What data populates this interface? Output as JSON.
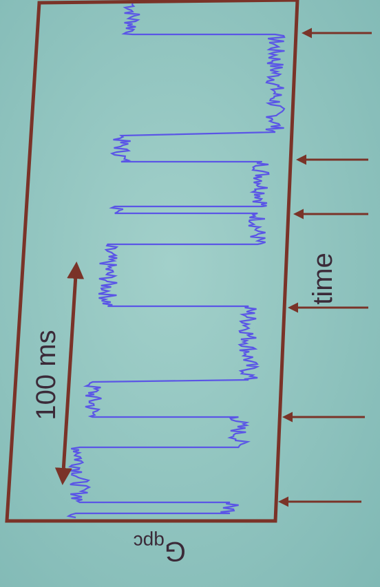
{
  "labels": {
    "scale": "100 ms",
    "axis": "time",
    "signal": "G",
    "signal_sub": "qpc"
  }
}
